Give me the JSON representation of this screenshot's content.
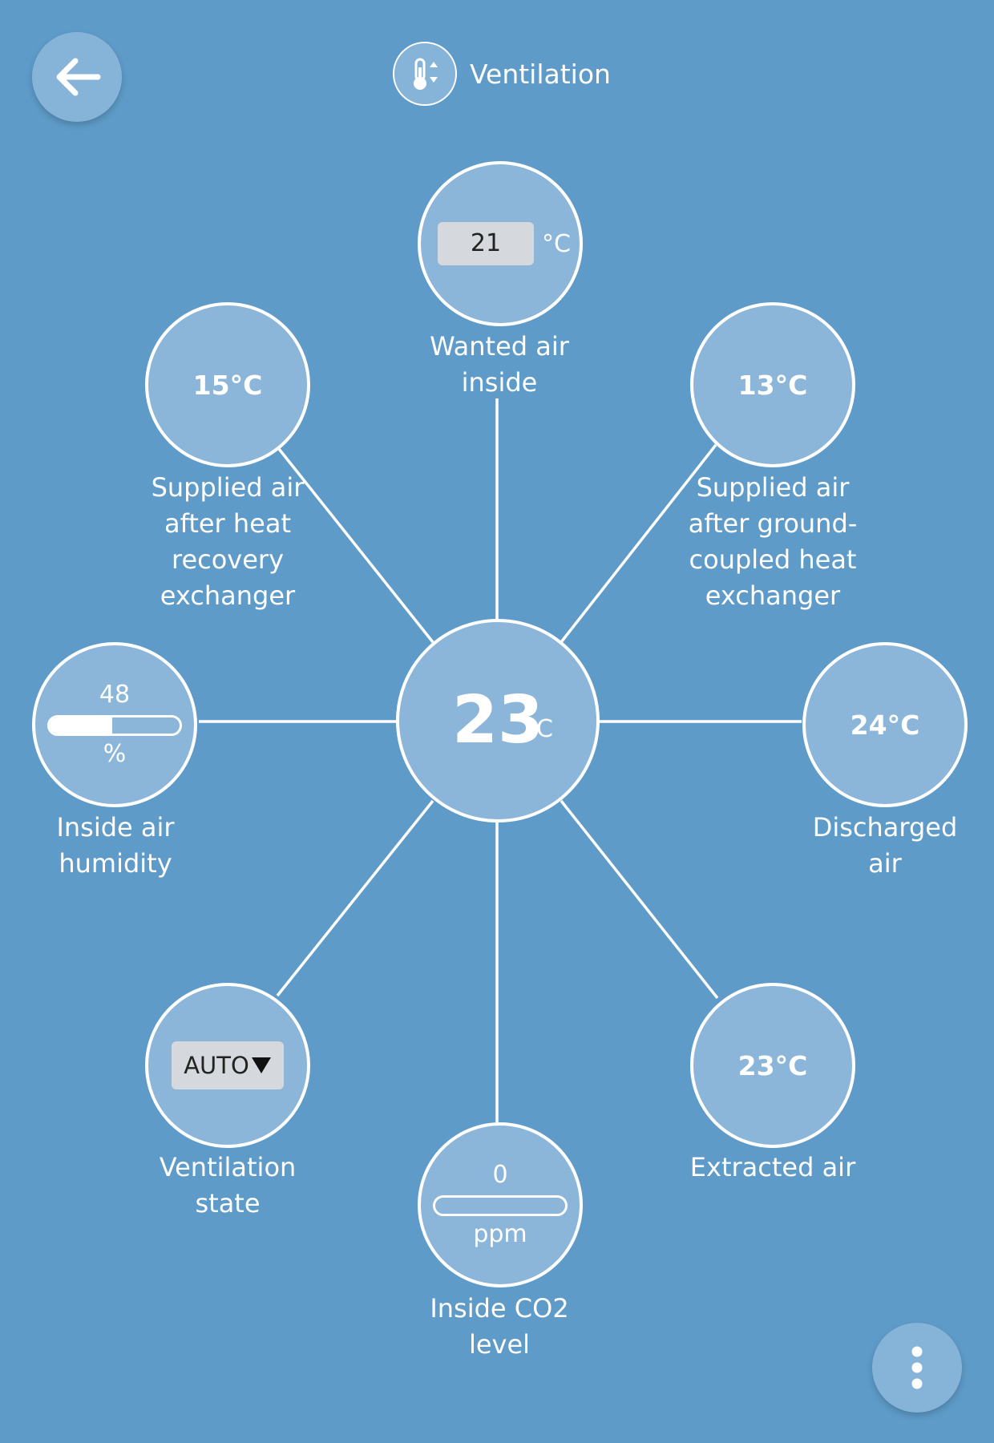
{
  "header": {
    "title": "Ventilation",
    "icon": "thermometer-updown-icon"
  },
  "center": {
    "value": "23",
    "unit": "°C"
  },
  "wanted_air_inside": {
    "value": "21",
    "unit": "°C",
    "label": "Wanted air\ninside"
  },
  "supplied_after_heat_recovery": {
    "value": "15°C",
    "label": "Supplied air\nafter heat\nrecovery\nexchanger"
  },
  "supplied_after_ground_coupled": {
    "value": "13°C",
    "label": "Supplied air\nafter ground-\ncoupled heat\nexchanger"
  },
  "inside_air_humidity": {
    "value": "48",
    "unit": "%",
    "fill_percent": 48,
    "label": "Inside air\nhumidity"
  },
  "discharged_air": {
    "value": "24°C",
    "label": "Discharged\nair"
  },
  "ventilation_state": {
    "value": "AUTO",
    "label": "Ventilation\nstate"
  },
  "inside_co2": {
    "value": "0",
    "unit": "ppm",
    "fill_percent": 0,
    "label": "Inside CO2\nlevel"
  },
  "extracted_air": {
    "value": "23°C",
    "label": "Extracted air"
  },
  "colors": {
    "background": "#5e9bc8",
    "node": "#8bb6d9",
    "button": "#86b4d9",
    "line": "#ffffff"
  },
  "icons": {
    "back": "arrow-left-icon",
    "menu": "more-vertical-icon",
    "dropdown": "triangle-down-icon"
  }
}
